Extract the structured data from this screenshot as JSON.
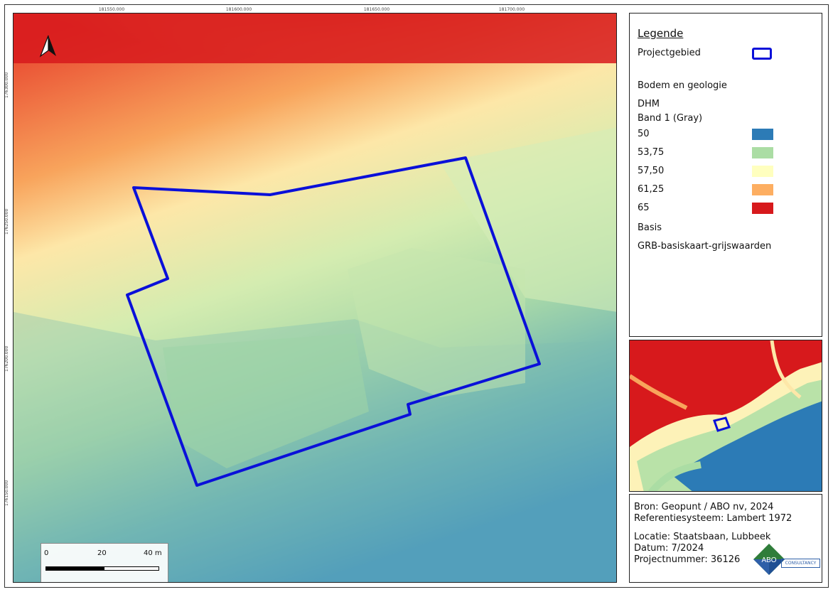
{
  "map": {
    "x_ticks": [
      "181550.000",
      "181600.000",
      "181650.000",
      "181700.000"
    ],
    "y_ticks": [
      "176300.000",
      "176250.000",
      "176200.000",
      "176150.000"
    ],
    "scale_bar": {
      "labels": [
        "0",
        "20",
        "40 m"
      ]
    },
    "north_arrow": "north-arrow-icon"
  },
  "legend": {
    "title": "Legende",
    "project_area": "Projectgebied",
    "group_soil": "Bodem en geologie",
    "layer": "DHM",
    "band": "Band 1 (Gray)",
    "classes": [
      {
        "label": "50",
        "color": "#2c7bb6"
      },
      {
        "label": "53,75",
        "color": "#abdda4"
      },
      {
        "label": "57,50",
        "color": "#ffffbf"
      },
      {
        "label": "61,25",
        "color": "#fdae61"
      },
      {
        "label": "65",
        "color": "#d7191c"
      }
    ],
    "group_base": "Basis",
    "base_layer": "GRB-basiskaart-grijswaarden",
    "project_color": "#0a10d9"
  },
  "info": {
    "source": "Bron: Geopunt / ABO nv, 2024",
    "crs": "Referentiesysteem: Lambert 1972",
    "location": "Locatie: Staatsbaan, Lubbeek",
    "date": "Datum: 7/2024",
    "project_number": "Projectnummer: 36126",
    "logo_text": "ABO",
    "logo_tag": "CONSULTANCY"
  }
}
